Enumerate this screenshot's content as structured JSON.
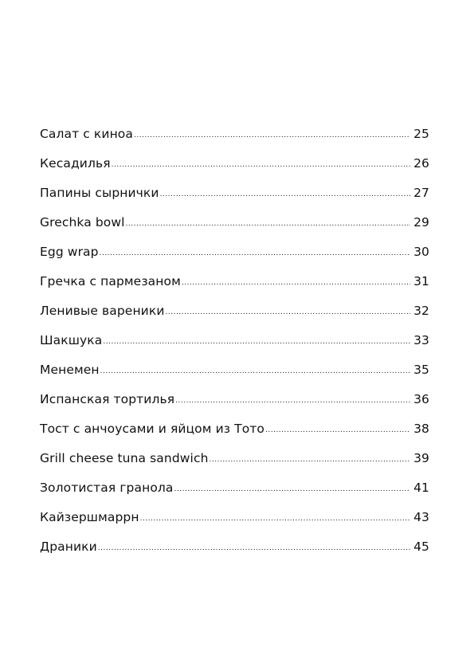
{
  "toc": [
    {
      "title": "Салат с киноа",
      "page": "25"
    },
    {
      "title": "Кесадилья",
      "page": "26"
    },
    {
      "title": "Папины сырнички",
      "page": "27"
    },
    {
      "title": "Grechka bowl",
      "page": "29"
    },
    {
      "title": "Egg wrap",
      "page": "30"
    },
    {
      "title": "Гречка с пармезаном",
      "page": "31"
    },
    {
      "title": "Ленивые вареники",
      "page": "32"
    },
    {
      "title": "Шакшука",
      "page": "33"
    },
    {
      "title": "Менемен",
      "page": "35"
    },
    {
      "title": "Испанская тортилья",
      "page": "36"
    },
    {
      "title": "Тост с анчоусами и яйцом из Тото",
      "page": "38"
    },
    {
      "title": "Grill cheese tuna sandwich",
      "page": "39"
    },
    {
      "title": "Золотистая гранола",
      "page": "41"
    },
    {
      "title": "Кайзершмаррн",
      "page": "43"
    },
    {
      "title": "Драники",
      "page": "45"
    }
  ]
}
